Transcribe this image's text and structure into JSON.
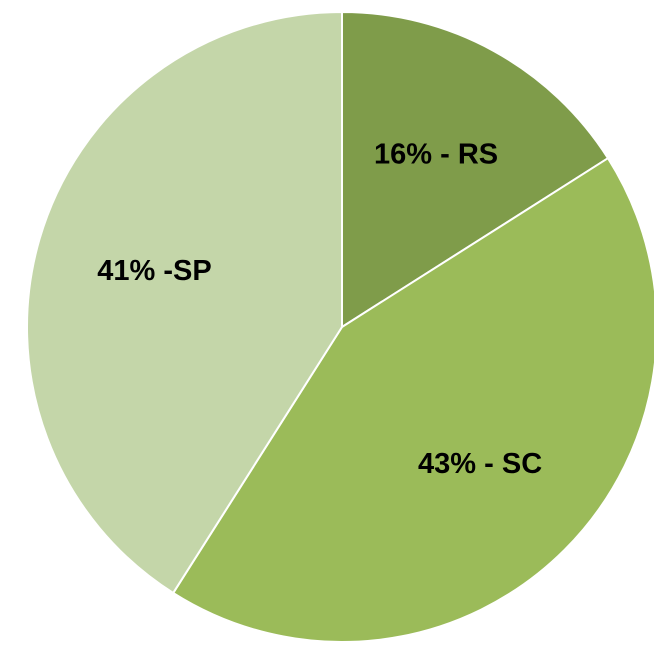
{
  "chart_data": {
    "type": "pie",
    "values": [
      16,
      43,
      41
    ],
    "value_labels": [
      "16% - RS",
      "43% - SC",
      "41% -SP"
    ],
    "colors": [
      "#7f9c4a",
      "#9bbb59",
      "#c4d6a9"
    ]
  }
}
